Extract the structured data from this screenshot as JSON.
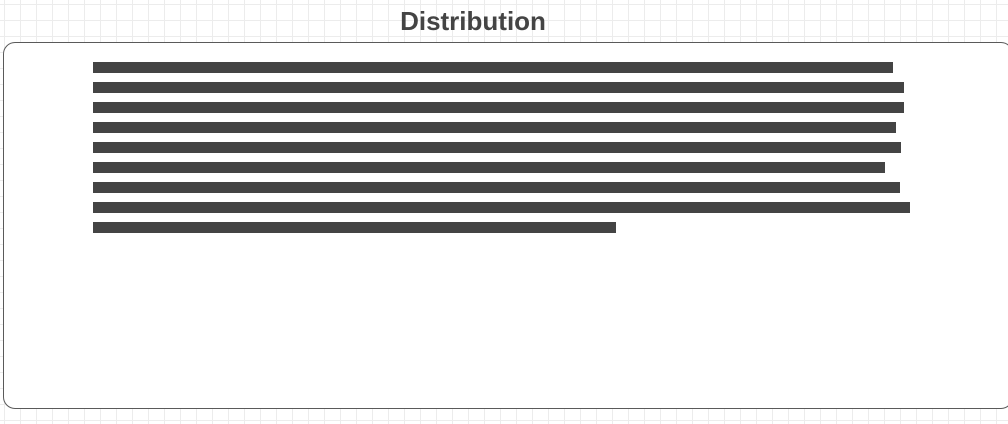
{
  "title": "Distribution",
  "colors": {
    "text": "#444444",
    "border": "#5a5a5a",
    "grid": "#ececec",
    "background": "#ffffff"
  },
  "text_block": {
    "line_count": 9,
    "redacted": true
  }
}
